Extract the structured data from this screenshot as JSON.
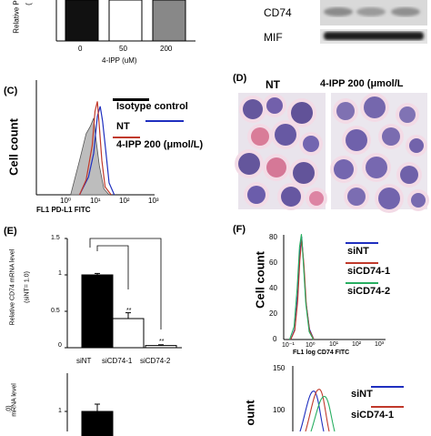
{
  "panels": {
    "B_left": {
      "ylabel_fragment": "Relative P",
      "paren_fragment": "(",
      "categories": [
        "0",
        "50",
        "200"
      ],
      "values": [
        1.0,
        1.0,
        1.0
      ],
      "xlabel": "4-IPP (uM)",
      "colors": [
        "#111111",
        "#ffffff",
        "#888888"
      ]
    },
    "B_right": {
      "labels": [
        "CD74",
        "MIF"
      ]
    },
    "C": {
      "label": "(C)",
      "ylabel": "Cell count",
      "xlabel": "FL1 PD-L1 FITC",
      "ticks": [
        "10⁰",
        "10¹",
        "10²",
        "10³"
      ],
      "legend": [
        {
          "name": "Isotype control",
          "color": "#000000"
        },
        {
          "name": "NT",
          "color": "#1f2fbf"
        },
        {
          "name": "4-IPP 200 (μmol/L)",
          "color": "#c0392b"
        }
      ]
    },
    "D": {
      "label": "(D)",
      "left_title": "NT",
      "right_title": "4-IPP 200 (μmol/L"
    },
    "E": {
      "label": "(E)",
      "ylabel_1": "Relative CD74 mRNA level",
      "ylabel_2": "(siNT= 1.0)",
      "yticks": [
        "0",
        "0.5",
        "1",
        "1.5"
      ],
      "categories": [
        "siNT",
        "siCD74-1",
        "siCD74-2"
      ],
      "sig": [
        "**",
        "**"
      ],
      "lower_ylabel_1": "mRNA level",
      "lower_ylabel_2": ".0)",
      "lower_ytick": "1"
    },
    "F": {
      "label": "(F)",
      "ylabel": "Cell count",
      "xlabel": "FL1 log CD74 FITC",
      "yticks": [
        "0",
        "20",
        "40",
        "60",
        "80"
      ],
      "xticks": [
        "10⁻¹",
        "10⁰",
        "10¹",
        "10²",
        "10³"
      ],
      "legend": [
        {
          "name": "siNT",
          "color": "#1f2fbf"
        },
        {
          "name": "siCD74-1",
          "color": "#c0392b"
        },
        {
          "name": "siCD74-2",
          "color": "#27ae60"
        }
      ]
    },
    "G": {
      "ylabel_fragment": "ount",
      "yticks": [
        "100",
        "150"
      ],
      "legend": [
        {
          "name": "siNT",
          "color": "#1f2fbf"
        },
        {
          "name": "siCD74-1",
          "color": "#c0392b"
        }
      ]
    }
  },
  "chart_data": [
    {
      "type": "bar",
      "categories": [
        "0",
        "50",
        "200"
      ],
      "values": [
        1.0,
        1.0,
        1.0
      ],
      "xlabel": "4-IPP (uM)",
      "ylabel": "Relative P"
    },
    {
      "type": "line",
      "xlabel": "FL1 PD-L1 FITC",
      "ylabel": "Cell count",
      "xscale": "log",
      "xlim": [
        1,
        1000
      ],
      "series": [
        {
          "name": "Isotype control",
          "x": [
            1.5,
            3,
            5,
            7,
            9,
            11,
            14,
            20,
            30
          ],
          "y": [
            0,
            0.35,
            0.62,
            0.7,
            0.78,
            0.55,
            0.3,
            0.06,
            0
          ]
        },
        {
          "name": "NT",
          "x": [
            3,
            6,
            9,
            12,
            15,
            18,
            23,
            30,
            45
          ],
          "y": [
            0,
            0.18,
            0.42,
            0.8,
            0.9,
            0.75,
            0.45,
            0.12,
            0
          ]
        },
        {
          "name": "4-IPP 200 (μmol/L)",
          "x": [
            3,
            5,
            8,
            10,
            12,
            14,
            17,
            22,
            35
          ],
          "y": [
            0,
            0.15,
            0.5,
            0.85,
            0.95,
            0.7,
            0.35,
            0.08,
            0
          ]
        }
      ],
      "legend_position": "top-right"
    },
    {
      "type": "bar",
      "categories": [
        "siNT",
        "siCD74-1",
        "siCD74-2"
      ],
      "values": [
        1.0,
        0.4,
        0.03
      ],
      "errors": [
        0.02,
        0.08,
        0.01
      ],
      "ylim": [
        0,
        1.5
      ],
      "ylabel": "Relative CD74 mRNA level (siNT= 1.0)"
    },
    {
      "type": "line",
      "xlabel": "FL1 log CD74 FITC",
      "ylabel": "Cell count",
      "xscale": "log",
      "xlim": [
        0.1,
        1000
      ],
      "ylim": [
        0,
        80
      ],
      "series": [
        {
          "name": "siNT",
          "x": [
            0.2,
            0.3,
            0.4,
            0.5,
            0.6,
            0.7,
            0.9,
            1.3,
            2
          ],
          "y": [
            0,
            8,
            35,
            68,
            80,
            62,
            30,
            8,
            0
          ]
        },
        {
          "name": "siCD74-1",
          "x": [
            0.2,
            0.3,
            0.4,
            0.5,
            0.6,
            0.75,
            0.95,
            1.3,
            2
          ],
          "y": [
            0,
            7,
            30,
            62,
            78,
            58,
            27,
            7,
            0
          ]
        },
        {
          "name": "siCD74-2",
          "x": [
            0.18,
            0.28,
            0.38,
            0.48,
            0.58,
            0.7,
            0.9,
            1.25,
            1.9
          ],
          "y": [
            0,
            10,
            40,
            72,
            82,
            60,
            28,
            6,
            0
          ]
        }
      ],
      "legend_position": "top-right"
    }
  ]
}
